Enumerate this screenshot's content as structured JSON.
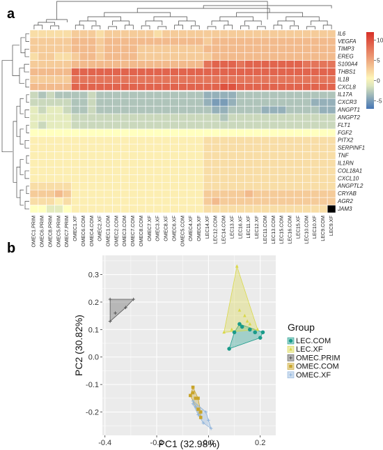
{
  "panel_labels": {
    "a": "a",
    "b": "b"
  },
  "chart_data": [
    {
      "type": "heatmap",
      "title": "",
      "samples": [
        "OMEC1.PRIM",
        "OMEC6.PRIM",
        "OMEC8.PRIM",
        "OMEC5.PRIM",
        "OMEC7.PRIM",
        "OMEC1.XF",
        "OMEC6.COM",
        "OMEC4.COM",
        "OMEC2.XF",
        "OMEC1.COM",
        "OMEC2.COM",
        "OMEC3.COM",
        "OMEC7.COM",
        "OMEC8.COM",
        "OMEC7.XF",
        "OMEC3.XF",
        "OMEC8.XF",
        "OMEC6.XF",
        "OMEC5.COM",
        "OMEC4.XF",
        "OMEC5.XF",
        "LEC14.XF",
        "LEC12.COM",
        "LEC14.COM",
        "LEC13.XF",
        "LEC16.XF",
        "LEC11.XF",
        "LEC12.XF",
        "LEC11.COM",
        "LEC13.COM",
        "LEC15.COM",
        "LEC16.COM",
        "LEC15.XF",
        "LEC10.COM",
        "LEC10.XF",
        "LEC9.COM",
        "LEC9.XF"
      ],
      "genes": [
        "IL6",
        "VEGFA",
        "TIMP3",
        "EREG",
        "S100A4",
        "THBS1",
        "IL1B",
        "CXCL8",
        "IL17A",
        "CXCR3",
        "ANGPT1",
        "ANGPT2",
        "FLT1",
        "FGF2",
        "PITX2",
        "SERPINF1",
        "TNF",
        "IL1RN",
        "COL18A1",
        "CXCL10",
        "ANGPTL2",
        "CRYAB",
        "AGR2",
        "JAM3"
      ],
      "colorbar": {
        "ticks": [
          10,
          5,
          0,
          -5
        ],
        "range": [
          -7,
          12
        ],
        "colors": [
          "#4575b4",
          "#ffffbf",
          "#d73027"
        ]
      },
      "gene_levels": {
        "IL6": [
          2,
          2,
          2,
          2,
          2,
          3,
          3,
          3,
          2,
          3,
          3,
          3,
          3,
          3,
          3,
          2,
          3,
          3,
          3,
          3,
          3,
          3,
          3,
          3,
          3,
          3,
          3,
          3,
          3,
          3,
          3,
          3,
          3,
          3,
          3,
          3,
          3
        ],
        "VEGFA": [
          3,
          3,
          3,
          3,
          3,
          4,
          4,
          4,
          3,
          4,
          4,
          4,
          4,
          4,
          4,
          4,
          4,
          4,
          4,
          4,
          4,
          3,
          4,
          4,
          4,
          4,
          4,
          4,
          4,
          4,
          4,
          4,
          4,
          4,
          4,
          4,
          4
        ],
        "TIMP3": [
          3,
          3,
          3,
          3,
          3,
          4,
          4,
          4,
          3,
          4,
          4,
          4,
          4,
          3,
          3,
          3,
          3,
          3,
          3,
          3,
          3,
          4,
          4,
          4,
          4,
          4,
          4,
          4,
          4,
          4,
          4,
          4,
          4,
          4,
          4,
          4,
          4
        ],
        "EREG": [
          2,
          3,
          3,
          2,
          2,
          3,
          4,
          4,
          3,
          4,
          4,
          4,
          4,
          3,
          3,
          3,
          3,
          3,
          3,
          3,
          3,
          3,
          4,
          4,
          4,
          4,
          4,
          4,
          4,
          4,
          4,
          4,
          4,
          4,
          4,
          4,
          4
        ],
        "S100A4": [
          3,
          3,
          3,
          3,
          3,
          4,
          4,
          4,
          4,
          4,
          4,
          4,
          4,
          4,
          4,
          4,
          4,
          4,
          4,
          4,
          4,
          8,
          9,
          9,
          9,
          8,
          9,
          9,
          9,
          9,
          9,
          9,
          9,
          8,
          8,
          8,
          8
        ],
        "THBS1": [
          4,
          4,
          4,
          4,
          4,
          9,
          9,
          9,
          9,
          9,
          9,
          9,
          9,
          9,
          9,
          9,
          9,
          9,
          9,
          9,
          9,
          9,
          9,
          9,
          9,
          9,
          9,
          9,
          9,
          9,
          9,
          9,
          9,
          9,
          9,
          9,
          9
        ],
        "IL1B": [
          3,
          3,
          3,
          3,
          3,
          8,
          8,
          8,
          8,
          8,
          8,
          8,
          8,
          8,
          8,
          8,
          8,
          8,
          8,
          8,
          8,
          8,
          8,
          8,
          8,
          8,
          8,
          8,
          8,
          8,
          8,
          8,
          8,
          8,
          8,
          8,
          8
        ],
        "CXCL8": [
          4,
          4,
          4,
          4,
          4,
          9,
          9,
          9,
          9,
          9,
          9,
          9,
          9,
          9,
          9,
          9,
          9,
          9,
          9,
          9,
          9,
          9,
          9,
          10,
          10,
          9,
          9,
          9,
          9,
          9,
          9,
          9,
          9,
          9,
          9,
          9,
          9
        ],
        "IL17A": [
          -2,
          -3,
          -2,
          -3,
          -3,
          -3,
          -3,
          -2,
          -3,
          -3,
          -3,
          -3,
          -3,
          -3,
          -3,
          -3,
          -3,
          -3,
          -3,
          -3,
          -3,
          -4,
          -4,
          -4,
          -4,
          -3,
          -3,
          -3,
          -3,
          -3,
          -3,
          -3,
          -3,
          -3,
          -3,
          -3,
          -3
        ],
        "CXCR3": [
          -2,
          -2,
          -2,
          -2,
          -2,
          -3,
          -3,
          -2,
          -3,
          -3,
          -3,
          -3,
          -3,
          -3,
          -3,
          -3,
          -3,
          -3,
          -3,
          -3,
          -3,
          -4,
          -5,
          -5,
          -4,
          -3,
          -3,
          -3,
          -3,
          -3,
          -3,
          -3,
          -3,
          -3,
          -4,
          -4,
          -4
        ],
        "ANGPT1": [
          -1,
          -2,
          -1,
          -1,
          -2,
          -3,
          -3,
          -2,
          -3,
          -3,
          -3,
          -3,
          -3,
          -3,
          -3,
          -3,
          -3,
          -3,
          -3,
          -3,
          -3,
          -3,
          -4,
          -4,
          -3,
          -3,
          -3,
          -3,
          -4,
          -4,
          -4,
          -3,
          -3,
          -3,
          -3,
          -4,
          -4
        ],
        "ANGPT2": [
          -1,
          -1,
          -1,
          -1,
          -1,
          -2,
          -2,
          -2,
          -2,
          -2,
          -2,
          -2,
          -2,
          -2,
          -2,
          -2,
          -2,
          -2,
          -2,
          -2,
          -2,
          -2,
          -2,
          -3,
          -2,
          -2,
          -2,
          -2,
          -2,
          -2,
          -2,
          -2,
          -2,
          -2,
          -2,
          -2,
          -2
        ],
        "FLT1": [
          -1,
          -2,
          -1,
          -1,
          -1,
          -2,
          -2,
          -2,
          -2,
          -2,
          -2,
          -2,
          -2,
          -2,
          -2,
          -2,
          -2,
          -2,
          -2,
          -2,
          -2,
          -2,
          -2,
          -2,
          -2,
          -2,
          -2,
          -2,
          -2,
          -2,
          -2,
          -2,
          -2,
          -2,
          -2,
          -2,
          -2
        ],
        "FGF2": [
          0,
          0,
          0,
          0,
          0,
          0,
          0,
          0,
          0,
          0,
          0,
          0,
          0,
          0,
          0,
          0,
          0,
          0,
          0,
          0,
          0,
          0,
          0,
          0,
          0,
          0,
          0,
          0,
          0,
          0,
          0,
          0,
          0,
          0,
          0,
          0,
          0
        ],
        "PITX2": [
          1,
          1,
          1,
          1,
          1,
          1,
          1,
          1,
          1,
          1,
          1,
          1,
          1,
          1,
          1,
          1,
          1,
          1,
          1,
          1,
          1,
          2,
          2,
          2,
          2,
          2,
          2,
          2,
          2,
          2,
          2,
          2,
          2,
          2,
          2,
          2,
          2
        ],
        "SERPINF1": [
          1,
          1,
          1,
          1,
          1,
          1,
          1,
          1,
          1,
          1,
          1,
          1,
          1,
          1,
          1,
          1,
          1,
          1,
          1,
          1,
          1,
          2,
          2,
          2,
          2,
          2,
          2,
          2,
          2,
          2,
          2,
          2,
          2,
          2,
          2,
          2,
          2
        ],
        "TNF": [
          1,
          1,
          1,
          1,
          1,
          1,
          1,
          1,
          1,
          1,
          1,
          1,
          1,
          1,
          1,
          1,
          1,
          1,
          1,
          1,
          1,
          2,
          2,
          2,
          2,
          2,
          2,
          2,
          2,
          2,
          2,
          2,
          2,
          2,
          2,
          2,
          2
        ],
        "IL1RN": [
          1,
          1,
          1,
          1,
          1,
          1,
          1,
          1,
          1,
          1,
          1,
          1,
          1,
          1,
          1,
          1,
          1,
          1,
          1,
          1,
          1,
          2,
          2,
          2,
          2,
          2,
          2,
          2,
          2,
          2,
          2,
          2,
          2,
          2,
          2,
          2,
          2
        ],
        "COL18A1": [
          1,
          1,
          1,
          1,
          1,
          1,
          1,
          1,
          1,
          1,
          1,
          1,
          1,
          1,
          1,
          1,
          1,
          1,
          1,
          1,
          1,
          2,
          2,
          2,
          2,
          2,
          2,
          2,
          2,
          2,
          2,
          2,
          2,
          2,
          2,
          2,
          2
        ],
        "CXCL10": [
          1,
          1,
          1,
          1,
          1,
          1,
          1,
          1,
          1,
          1,
          1,
          1,
          1,
          1,
          1,
          1,
          1,
          1,
          1,
          1,
          1,
          2,
          2,
          2,
          2,
          2,
          2,
          2,
          2,
          2,
          2,
          2,
          2,
          2,
          2,
          2,
          2
        ],
        "ANGPTL2": [
          2,
          2,
          2,
          2,
          2,
          1,
          1,
          1,
          1,
          1,
          1,
          1,
          1,
          1,
          1,
          1,
          1,
          1,
          1,
          1,
          1,
          2,
          2,
          2,
          2,
          2,
          2,
          2,
          2,
          2,
          2,
          2,
          2,
          2,
          2,
          2,
          2
        ],
        "CRYAB": [
          3,
          3,
          3,
          4,
          3,
          1,
          1,
          1,
          1,
          1,
          1,
          1,
          1,
          1,
          1,
          1,
          1,
          1,
          1,
          1,
          1,
          3,
          3,
          3,
          3,
          3,
          4,
          3,
          3,
          3,
          3,
          3,
          3,
          3,
          3,
          3,
          3
        ],
        "AGR2": [
          2,
          2,
          2,
          1,
          2,
          1,
          1,
          1,
          1,
          1,
          1,
          1,
          1,
          1,
          1,
          1,
          1,
          1,
          1,
          1,
          1,
          3,
          4,
          3,
          3,
          3,
          3,
          3,
          3,
          3,
          3,
          3,
          3,
          3,
          3,
          3,
          3
        ],
        "JAM3": [
          0,
          0,
          -1,
          -1,
          0,
          1,
          1,
          1,
          1,
          1,
          1,
          1,
          1,
          1,
          1,
          1,
          1,
          1,
          1,
          1,
          1,
          2,
          2,
          2,
          2,
          2,
          2,
          2,
          2,
          2,
          2,
          2,
          2,
          2,
          2,
          2
        ]
      }
    },
    {
      "type": "scatter",
      "title": "",
      "xlabel": "PC1 (32.98%)",
      "ylabel": "PC2 (30.82%)",
      "xlim": [
        -0.41,
        0.26
      ],
      "ylim": [
        -0.285,
        0.37
      ],
      "xticks": [
        -0.4,
        -0.2,
        0.0,
        0.2
      ],
      "xtick_labels": [
        "-0.4",
        "-0.2",
        "0.0",
        "0.2"
      ],
      "yticks": [
        -0.2,
        -0.1,
        0.0,
        0.1,
        0.2,
        0.3
      ],
      "ytick_labels": [
        "-0.2",
        "-0.1",
        "0.0",
        "0.1",
        "0.2",
        "0.3"
      ],
      "grid": true,
      "legend_title": "Group",
      "legend_position": "right",
      "series": [
        {
          "name": "LEC.COM",
          "color": "#1a9b8a",
          "marker": "circle",
          "points": [
            [
              0.08,
              0.03
            ],
            [
              0.12,
              0.12
            ],
            [
              0.16,
              0.1
            ],
            [
              0.18,
              0.09
            ],
            [
              0.21,
              0.09
            ],
            [
              0.1,
              0.09
            ],
            [
              0.13,
              0.11
            ],
            [
              0.2,
              0.07
            ]
          ]
        },
        {
          "name": "LEC.XF",
          "color": "#d9d84a",
          "marker": "triangle",
          "points": [
            [
              0.11,
              0.33
            ],
            [
              0.06,
              0.09
            ],
            [
              0.14,
              0.15
            ],
            [
              0.16,
              0.12
            ],
            [
              0.19,
              0.1
            ],
            [
              0.12,
              0.17
            ],
            [
              0.15,
              0.13
            ],
            [
              0.09,
              0.1
            ]
          ]
        },
        {
          "name": "OMEC.PRIM",
          "color": "#555555",
          "marker": "cross",
          "points": [
            [
              -0.38,
              0.21
            ],
            [
              -0.36,
              0.16
            ],
            [
              -0.38,
              0.13
            ],
            [
              -0.32,
              0.18
            ],
            [
              -0.29,
              0.21
            ]
          ]
        },
        {
          "name": "OMEC.COM",
          "color": "#c8a42a",
          "marker": "square",
          "points": [
            [
              -0.07,
              -0.14
            ],
            [
              -0.05,
              -0.15
            ],
            [
              -0.04,
              -0.15
            ],
            [
              -0.06,
              -0.13
            ],
            [
              -0.04,
              -0.19
            ],
            [
              -0.03,
              -0.2
            ],
            [
              -0.06,
              -0.11
            ],
            [
              -0.03,
              -0.22
            ]
          ]
        },
        {
          "name": "OMEC.XF",
          "color": "#8fb4dc",
          "marker": "cross",
          "points": [
            [
              -0.05,
              -0.18
            ],
            [
              -0.06,
              -0.16
            ],
            [
              -0.01,
              -0.2
            ],
            [
              0.0,
              -0.23
            ],
            [
              -0.02,
              -0.24
            ],
            [
              -0.04,
              -0.21
            ],
            [
              0.01,
              -0.26
            ],
            [
              -0.06,
              -0.17
            ]
          ]
        }
      ]
    }
  ]
}
